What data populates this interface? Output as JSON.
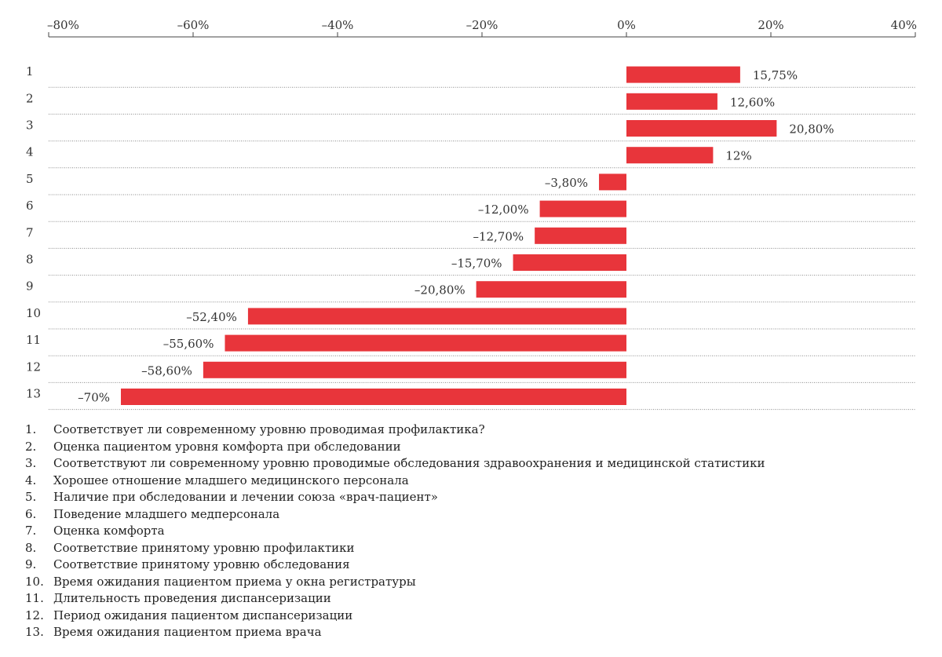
{
  "chart_data": {
    "type": "bar",
    "orientation": "horizontal",
    "categories": [
      "1",
      "2",
      "3",
      "4",
      "5",
      "6",
      "7",
      "8",
      "9",
      "10",
      "11",
      "12",
      "13"
    ],
    "values": [
      15.75,
      12.6,
      20.8,
      12,
      -3.8,
      -12.0,
      -12.7,
      -15.7,
      -20.8,
      -52.4,
      -55.6,
      -58.6,
      -70
    ],
    "data_labels": [
      "15,75%",
      "12,60%",
      "20,80%",
      "12%",
      "–3,80%",
      "–12,00%",
      "–12,70%",
      "–15,70%",
      "–20,80%",
      "–52,40%",
      "–55,60%",
      "–58,60%",
      "–70%"
    ],
    "xlim": [
      -80,
      40
    ],
    "x_ticks": [
      -80,
      -60,
      -40,
      -20,
      0,
      20,
      40
    ],
    "x_tick_labels": [
      "–80%",
      "–60%",
      "–40%",
      "–20%",
      "0%",
      "20%",
      "40%"
    ],
    "x_axis_position": "top",
    "bar_color": "#e8353b",
    "grid": "dotted horizontal separators between rows",
    "legend": [
      "Соответствует ли современному уровню проводимая профилактика?",
      "Оценка пациентом уровня комфорта при обследовании",
      "Соответствуют ли современному уровню проводимые обследования здравоохранения и медицинской статистики",
      "Хорошее отношение младшего медицинского персонала",
      "Наличие при обследовании и лечении союза «врач-пациент»",
      "Поведение младшего медперсонала",
      "Оценка комфорта",
      "Соответствие принятому уровню профилактики",
      "Соответствие принятому уровню обследования",
      "Время ожидания пациентом приема у окна регистратуры",
      "Длительность проведения диспансеризации",
      "Период ожидания пациентом диспансеризации",
      "Время ожидания пациентом приема врача"
    ],
    "legend_placement": "bottom"
  }
}
